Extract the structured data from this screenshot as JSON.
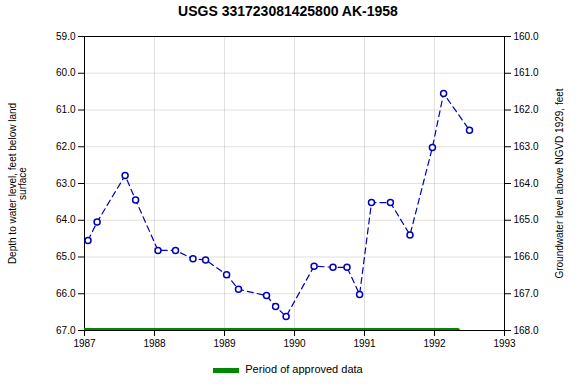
{
  "chart_data": {
    "type": "line",
    "title": "USGS 331723081425800 AK-1958",
    "ylabel": "Depth to water level, feet below land\nsurface",
    "y2label": "Groundwater level above NGVD 1929, feet",
    "x": [
      1987.05,
      1987.18,
      1987.58,
      1987.73,
      1988.05,
      1988.3,
      1988.55,
      1988.73,
      1989.03,
      1989.2,
      1989.6,
      1989.73,
      1989.88,
      1990.28,
      1990.55,
      1990.75,
      1990.93,
      1991.1,
      1991.37,
      1991.65,
      1991.97,
      1992.13,
      1992.5
    ],
    "xlim": [
      1987.0,
      1993.0
    ],
    "xticks": [
      1987,
      1988,
      1989,
      1990,
      1991,
      1992,
      1993
    ],
    "ylim": [
      67.0,
      59.0
    ],
    "yticks": [
      {
        "value": 59.0,
        "label": "59.0"
      },
      {
        "value": 60.0,
        "label": "60.0"
      },
      {
        "value": 61.0,
        "label": "61.0"
      },
      {
        "value": 62.0,
        "label": "62.0"
      },
      {
        "value": 63.0,
        "label": "63.0"
      },
      {
        "value": 64.0,
        "label": "64.0"
      },
      {
        "value": 65.0,
        "label": "65.0"
      },
      {
        "value": 66.0,
        "label": "66.0"
      },
      {
        "value": 67.0,
        "label": "67.0"
      }
    ],
    "y2lim": [
      168.0,
      160.0
    ],
    "y2ticks": [
      {
        "value": 168.0,
        "label": "168.0"
      },
      {
        "value": 167.0,
        "label": "167.0"
      },
      {
        "value": 166.0,
        "label": "166.0"
      },
      {
        "value": 165.0,
        "label": "165.0"
      },
      {
        "value": 164.0,
        "label": "164.0"
      },
      {
        "value": 163.0,
        "label": "163.0"
      },
      {
        "value": 162.0,
        "label": "162.0"
      },
      {
        "value": 161.0,
        "label": "161.0"
      },
      {
        "value": 160.0,
        "label": "160.0"
      }
    ],
    "grid": true,
    "legend": "bottom",
    "series": [
      {
        "color": "#0000bb",
        "marker": "circle",
        "line_style": "dashed",
        "values": [
          64.55,
          64.05,
          62.78,
          63.45,
          64.82,
          64.82,
          65.05,
          65.08,
          65.48,
          65.88,
          66.05,
          66.35,
          66.62,
          65.25,
          65.28,
          65.28,
          66.02,
          63.52,
          63.52,
          64.4,
          62.02,
          60.55,
          61.55
        ]
      },
      {
        "name": "Period of approved data",
        "color": "#008800",
        "type": "line",
        "x": [
          1987.0,
          1992.33
        ],
        "values": [
          67.0,
          67.0
        ]
      }
    ]
  }
}
